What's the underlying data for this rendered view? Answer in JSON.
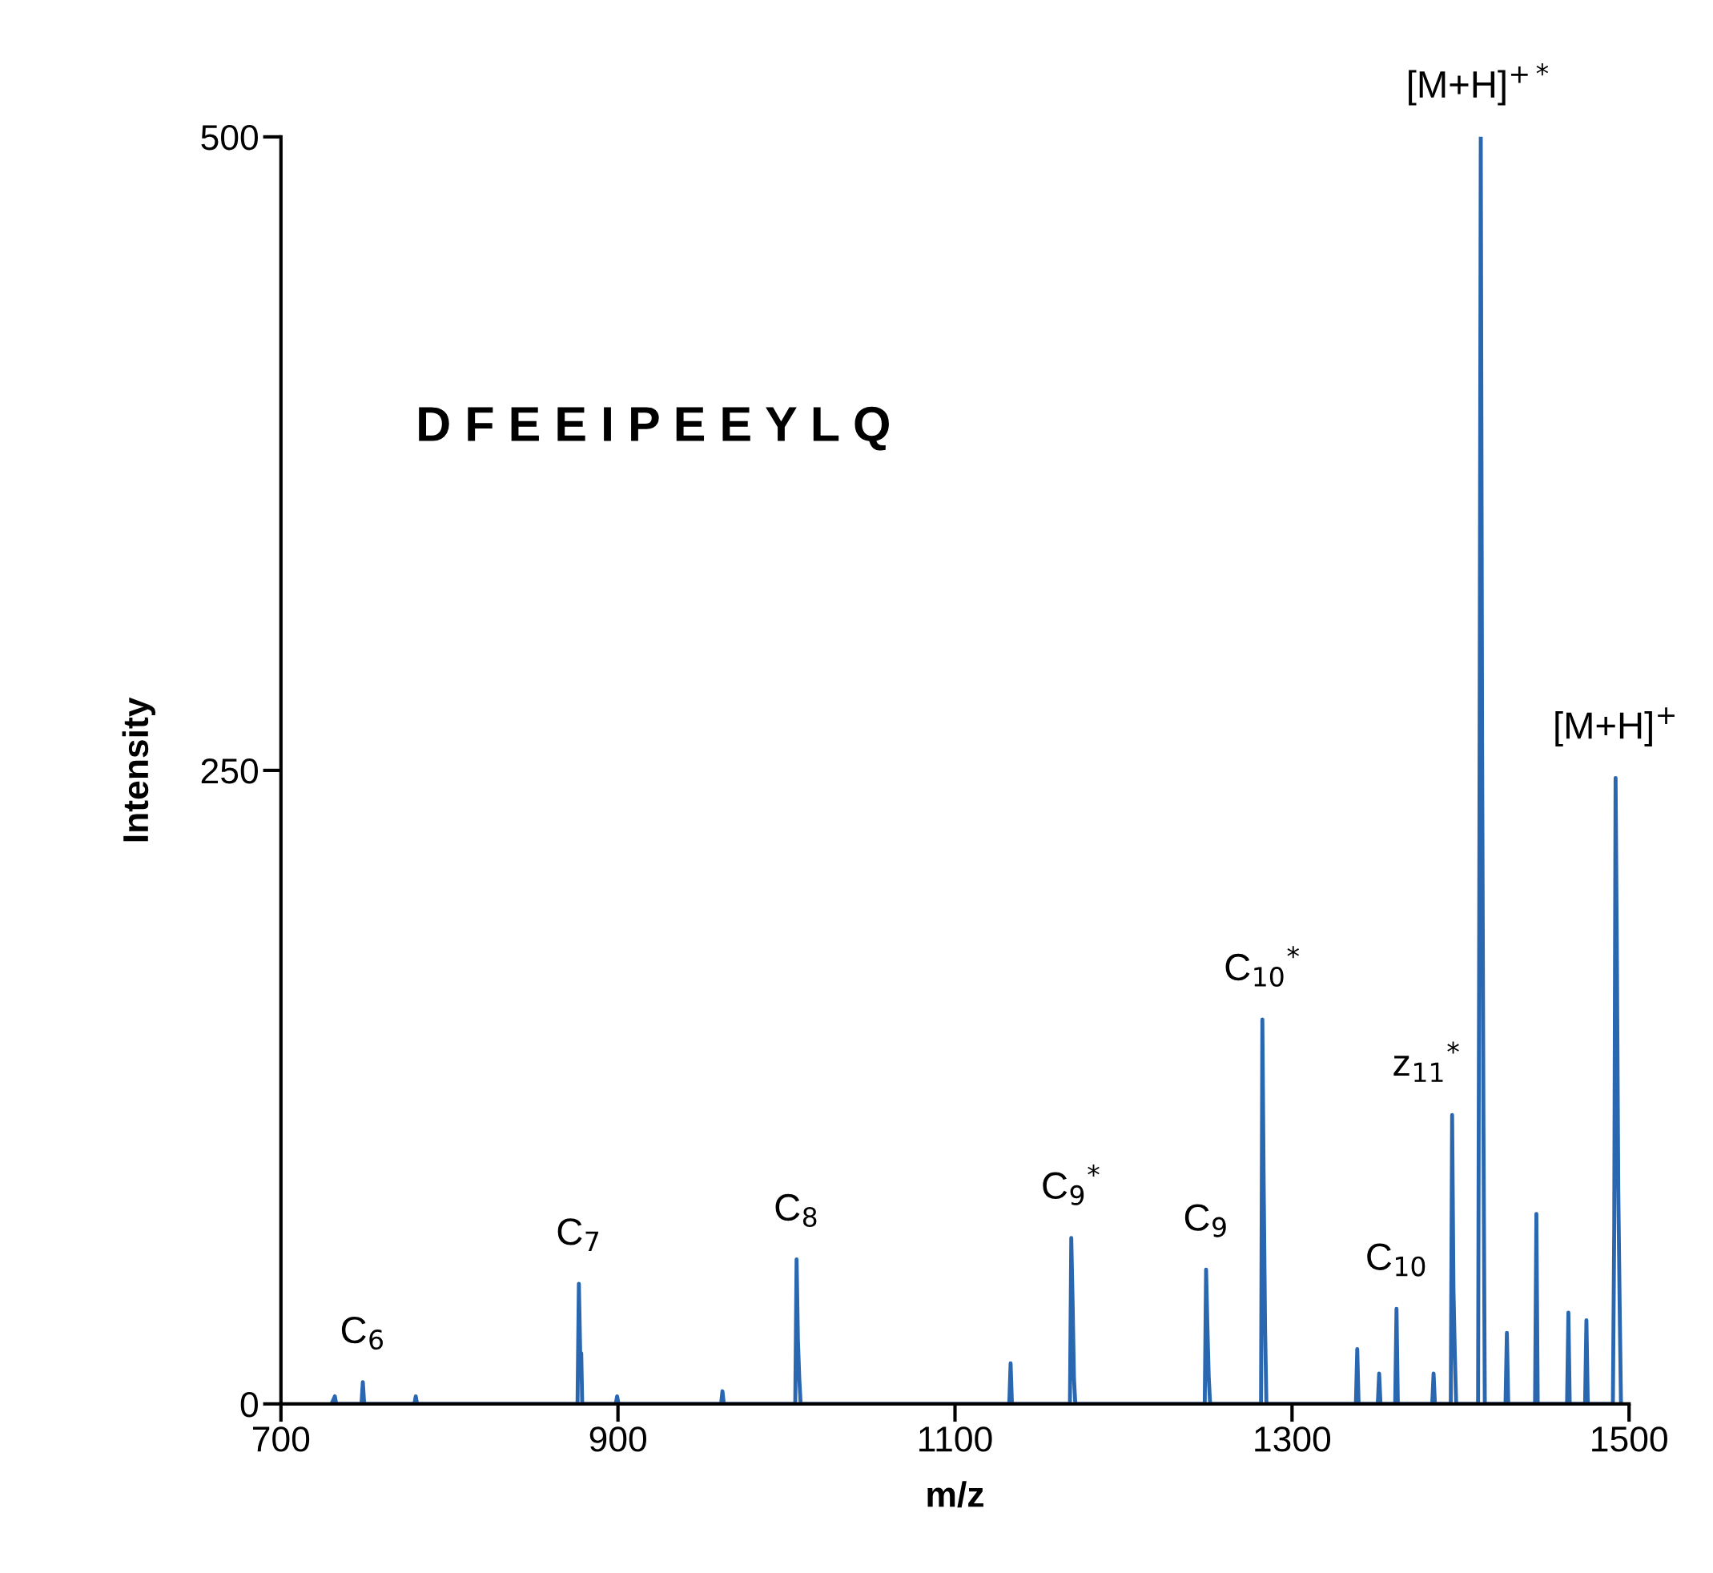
{
  "chart_data": {
    "type": "line",
    "xlabel": "m/z",
    "ylabel": "Intensity",
    "series": [
      {
        "color": "#2a67b1",
        "x": [
          730,
          732,
          732.8,
          733.6,
          747.8,
          748.6,
          749.4,
          779.2,
          780,
          780.8,
          876,
          876.8,
          877.6,
          878.2,
          878.8,
          898.7,
          899.5,
          900.3,
          961.2,
          962,
          962.8,
          1005.2,
          1006,
          1006.8,
          1007.6,
          1008.4,
          1132.2,
          1133,
          1133.8,
          1168.2,
          1169,
          1169.8,
          1170.6,
          1171.4,
          1248.2,
          1249,
          1249.8,
          1250.6,
          1251.4,
          1281.6,
          1282.4,
          1283.2,
          1284,
          1284.8,
          1337.9,
          1338.7,
          1339.5,
          1350.9,
          1351.7,
          1352.5,
          1361.2,
          1362,
          1362.8,
          1383.2,
          1384,
          1384.8,
          1394.2,
          1395,
          1395.8,
          1396.6,
          1397.4,
          1410.4,
          1411.2,
          1412,
          1412.8,
          1413.6,
          1414.4,
          1426.7,
          1427.5,
          1428.3,
          1444.2,
          1445,
          1445.8,
          1463.2,
          1464,
          1464.8,
          1473.9,
          1474.7,
          1475.5,
          1490.4,
          1491.2,
          1492,
          1492.8,
          1493.6,
          1494.4,
          1495.2
        ],
        "values": [
          0,
          3,
          0,
          0,
          0,
          8.6,
          0,
          0,
          3,
          0,
          0,
          47.4,
          20,
          20,
          0,
          0,
          3,
          0,
          0,
          5,
          0,
          0,
          57,
          25,
          10,
          0,
          0,
          16,
          0,
          0,
          65.5,
          40,
          10,
          0,
          0,
          53,
          30,
          10,
          0,
          0,
          151.7,
          85,
          30,
          0,
          0,
          21.6,
          0,
          0,
          12,
          0,
          0,
          37.5,
          0,
          0,
          12,
          0,
          0,
          114,
          45,
          20,
          0,
          0,
          225,
          500,
          260,
          110,
          0,
          0,
          28,
          0,
          0,
          75,
          0,
          0,
          36,
          0,
          0,
          33,
          0,
          0,
          70,
          247,
          174,
          85,
          40,
          0
        ]
      }
    ],
    "xlim": [
      700,
      1500
    ],
    "ylim": [
      0,
      500
    ],
    "xticks": [
      700,
      900,
      1100,
      1300,
      1500
    ],
    "yticks": [
      0,
      250,
      500
    ],
    "grid": false,
    "legend": false,
    "marker": "none",
    "line_style": "solid",
    "annotations": [
      {
        "text": "C$_{6}$",
        "x": 748.6,
        "y": 8.6
      },
      {
        "text": "C$_{7}$",
        "x": 876.8,
        "y": 47.4
      },
      {
        "text": "C$_{8}$",
        "x": 1006,
        "y": 57
      },
      {
        "text": "C$_{9}$$^{*}$",
        "x": 1169,
        "y": 65.5
      },
      {
        "text": "C$_{9}$",
        "x": 1249,
        "y": 53
      },
      {
        "text": "C$_{10}$$^{*}$",
        "x": 1282.4,
        "y": 151.7
      },
      {
        "text": "C$_{10}$",
        "x": 1362,
        "y": 37.5
      },
      {
        "text": "z$_{11}$$^{*}$",
        "x": 1395,
        "y": 114
      },
      {
        "text": "[M+H]$^{+*}$",
        "x": 1412,
        "y": 500
      },
      {
        "text": "[M+H]$^{+}$",
        "x": 1492,
        "y": 247
      },
      "D F E E I P E E Y L Q"
    ]
  }
}
